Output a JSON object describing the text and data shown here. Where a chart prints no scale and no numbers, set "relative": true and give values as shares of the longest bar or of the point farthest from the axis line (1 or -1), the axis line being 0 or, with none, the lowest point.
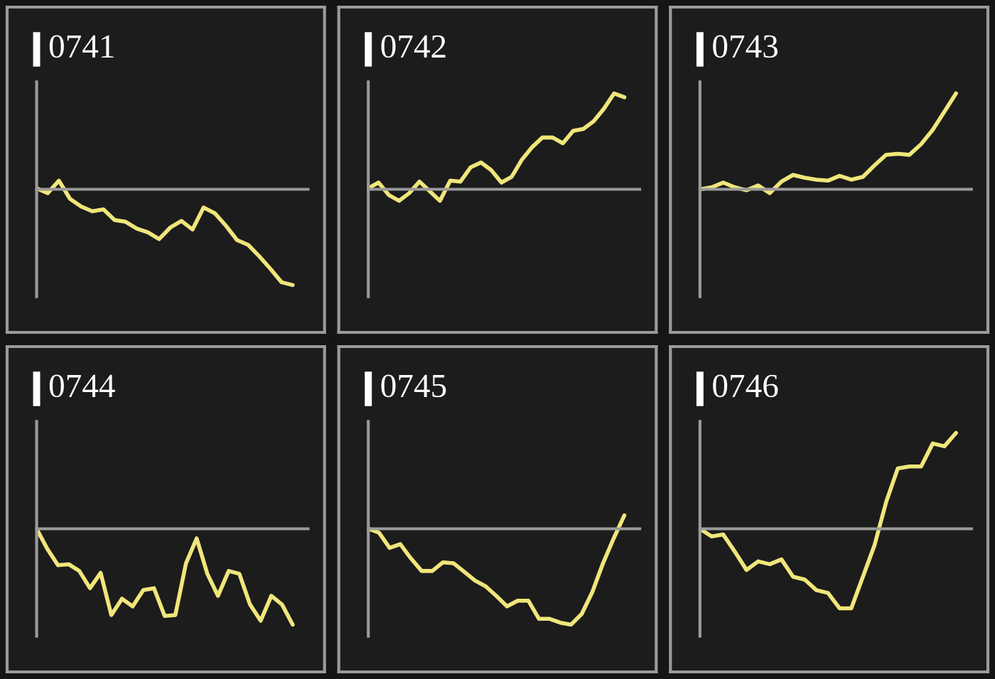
{
  "chart_data": [
    {
      "type": "line",
      "title": "0741",
      "relative": true,
      "tick_labels": false,
      "categories": [
        null,
        null,
        null,
        null,
        null,
        null,
        null,
        null,
        null,
        null,
        null,
        null,
        null,
        null,
        null,
        null,
        null,
        null,
        null,
        null,
        null,
        null,
        null,
        null
      ],
      "series": [
        {
          "color": "#f0e67a",
          "values": [
            0.01,
            -0.04,
            0.09,
            -0.1,
            -0.18,
            -0.23,
            -0.21,
            -0.32,
            -0.34,
            -0.41,
            -0.45,
            -0.52,
            -0.4,
            -0.33,
            -0.42,
            -0.19,
            -0.25,
            -0.38,
            -0.53,
            -0.58,
            -0.7,
            -0.83,
            -0.97,
            -1
          ]
        }
      ]
    },
    {
      "type": "line",
      "title": "0742",
      "relative": true,
      "tick_labels": false,
      "categories": [
        null,
        null,
        null,
        null,
        null,
        null,
        null,
        null,
        null,
        null,
        null,
        null,
        null,
        null,
        null,
        null,
        null,
        null,
        null,
        null,
        null,
        null,
        null,
        null,
        null,
        null
      ],
      "series": [
        {
          "color": "#f0e67a",
          "values": [
            0.01,
            0.07,
            -0.06,
            -0.12,
            -0.04,
            0.08,
            -0.02,
            -0.12,
            0.09,
            0.08,
            0.23,
            0.28,
            0.2,
            0.07,
            0.13,
            0.31,
            0.44,
            0.54,
            0.54,
            0.48,
            0.61,
            0.63,
            0.71,
            0.84,
            1,
            0.96
          ]
        }
      ]
    },
    {
      "type": "line",
      "title": "0743",
      "relative": true,
      "tick_labels": false,
      "categories": [
        null,
        null,
        null,
        null,
        null,
        null,
        null,
        null,
        null,
        null,
        null,
        null,
        null,
        null,
        null,
        null,
        null,
        null,
        null,
        null,
        null,
        null,
        null
      ],
      "series": [
        {
          "color": "#f0e67a",
          "values": [
            0,
            0.02,
            0.07,
            0.02,
            -0.01,
            0.04,
            -0.04,
            0.08,
            0.15,
            0.12,
            0.1,
            0.09,
            0.14,
            0.1,
            0.13,
            0.25,
            0.36,
            0.37,
            0.36,
            0.47,
            0.62,
            0.81,
            1
          ]
        }
      ]
    },
    {
      "type": "line",
      "title": "0744",
      "relative": true,
      "tick_labels": false,
      "categories": [
        null,
        null,
        null,
        null,
        null,
        null,
        null,
        null,
        null,
        null,
        null,
        null,
        null,
        null,
        null,
        null,
        null,
        null,
        null,
        null,
        null,
        null,
        null,
        null,
        null
      ],
      "series": [
        {
          "color": "#f0e67a",
          "values": [
            0,
            -0.21,
            -0.38,
            -0.37,
            -0.44,
            -0.62,
            -0.46,
            -0.9,
            -0.73,
            -0.81,
            -0.64,
            -0.62,
            -0.91,
            -0.9,
            -0.36,
            -0.1,
            -0.47,
            -0.7,
            -0.44,
            -0.47,
            -0.79,
            -0.96,
            -0.7,
            -0.79,
            -1
          ]
        }
      ]
    },
    {
      "type": "line",
      "title": "0745",
      "relative": true,
      "tick_labels": false,
      "categories": [
        null,
        null,
        null,
        null,
        null,
        null,
        null,
        null,
        null,
        null,
        null,
        null,
        null,
        null,
        null,
        null,
        null,
        null,
        null,
        null,
        null,
        null,
        null,
        null,
        null
      ],
      "series": [
        {
          "color": "#f0e67a",
          "values": [
            0,
            -0.04,
            -0.2,
            -0.16,
            -0.31,
            -0.44,
            -0.44,
            -0.35,
            -0.36,
            -0.45,
            -0.54,
            -0.6,
            -0.7,
            -0.81,
            -0.75,
            -0.75,
            -0.94,
            -0.94,
            -0.98,
            -1,
            -0.89,
            -0.66,
            -0.36,
            -0.1,
            0.14
          ]
        }
      ]
    },
    {
      "type": "line",
      "title": "0746",
      "relative": true,
      "tick_labels": false,
      "categories": [
        null,
        null,
        null,
        null,
        null,
        null,
        null,
        null,
        null,
        null,
        null,
        null,
        null,
        null,
        null,
        null,
        null,
        null,
        null,
        null,
        null,
        null,
        null
      ],
      "series": [
        {
          "color": "#f0e67a",
          "values": [
            0,
            -0.08,
            -0.06,
            -0.24,
            -0.43,
            -0.34,
            -0.37,
            -0.32,
            -0.5,
            -0.53,
            -0.64,
            -0.67,
            -0.83,
            -0.83,
            -0.5,
            -0.17,
            0.28,
            0.63,
            0.65,
            0.65,
            0.89,
            0.86,
            1
          ]
        }
      ]
    }
  ]
}
